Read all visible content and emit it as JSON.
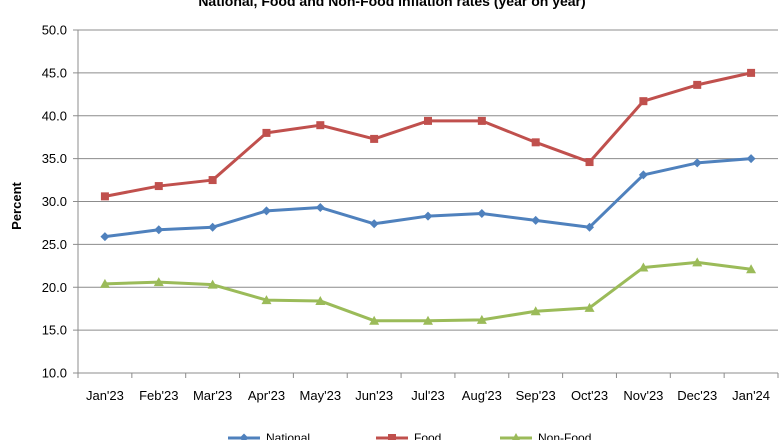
{
  "chart_data": {
    "type": "line",
    "title": "National, Food and Non-Food inflation rates (year on year)",
    "xlabel": "",
    "ylabel": "Percent",
    "ylim": [
      10.0,
      50.0
    ],
    "yticks": [
      "10.0",
      "15.0",
      "20.0",
      "25.0",
      "30.0",
      "35.0",
      "40.0",
      "45.0",
      "50.0"
    ],
    "grid": "horizontal",
    "legend_position": "bottom",
    "categories": [
      "Jan'23",
      "Feb'23",
      "Mar'23",
      "Apr'23",
      "May'23",
      "Jun'23",
      "Jul'23",
      "Aug'23",
      "Sep'23",
      "Oct'23",
      "Nov'23",
      "Dec'23",
      "Jan'24"
    ],
    "series": [
      {
        "name": "National",
        "color": "#4F81BD",
        "marker": "diamond",
        "values": [
          25.9,
          26.7,
          27.0,
          28.9,
          29.3,
          27.4,
          28.3,
          28.6,
          27.8,
          27.0,
          33.1,
          34.5,
          35.0
        ]
      },
      {
        "name": "Food",
        "color": "#C0504D",
        "marker": "square",
        "values": [
          30.6,
          31.8,
          32.5,
          38.0,
          38.9,
          37.3,
          39.4,
          39.4,
          36.9,
          34.6,
          41.7,
          43.6,
          45.0
        ]
      },
      {
        "name": "Non-Food",
        "color": "#9BBB59",
        "marker": "triangle",
        "values": [
          20.4,
          20.6,
          20.3,
          18.5,
          18.4,
          16.1,
          16.1,
          16.2,
          17.2,
          17.6,
          22.3,
          22.9,
          22.1
        ]
      }
    ]
  }
}
